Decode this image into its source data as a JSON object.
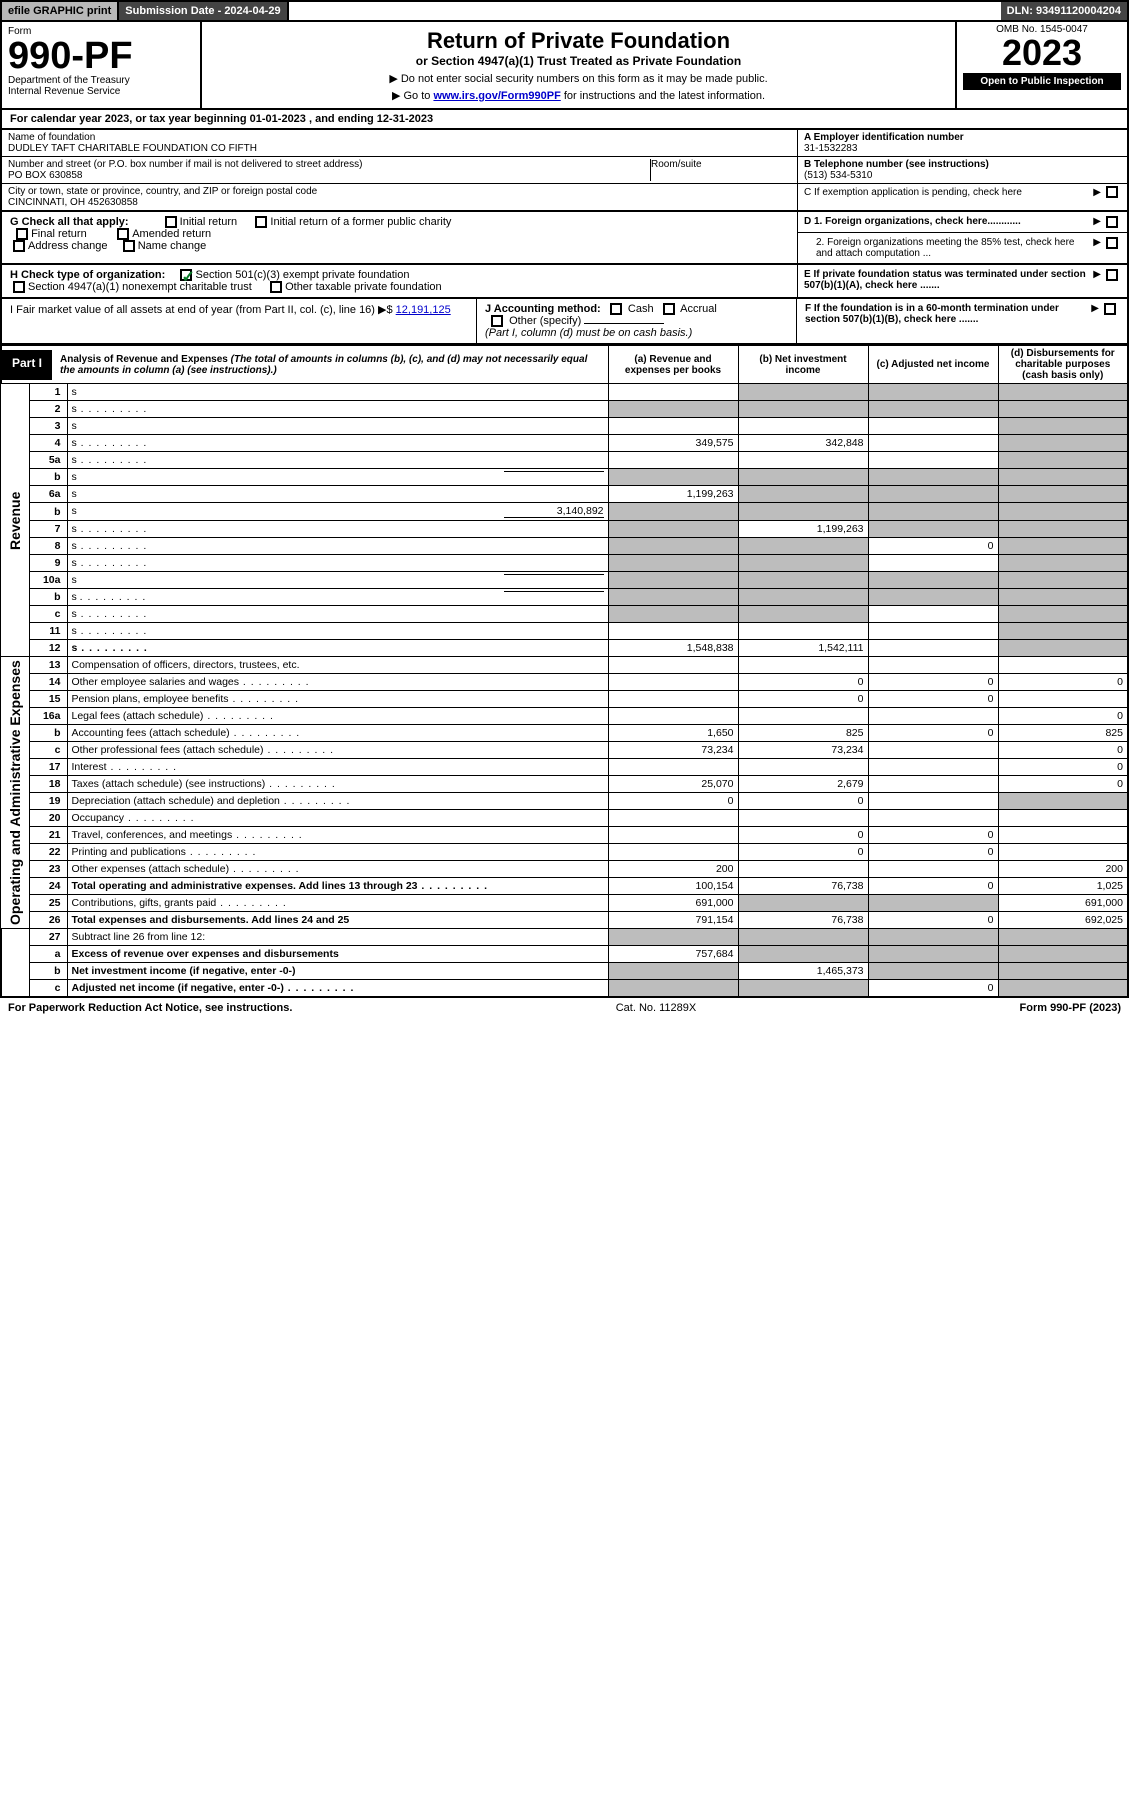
{
  "top_bar": {
    "efile": "efile GRAPHIC print",
    "sub_label": "Submission Date - 2024-04-29",
    "dln": "DLN: 93491120004204"
  },
  "header": {
    "form_word": "Form",
    "form_no": "990-PF",
    "dept": "Department of the Treasury",
    "irs": "Internal Revenue Service",
    "title": "Return of Private Foundation",
    "subtitle": "or Section 4947(a)(1) Trust Treated as Private Foundation",
    "note1": "▶ Do not enter social security numbers on this form as it may be made public.",
    "note2_pre": "▶ Go to ",
    "note2_link": "www.irs.gov/Form990PF",
    "note2_post": " for instructions and the latest information.",
    "omb": "OMB No. 1545-0047",
    "year": "2023",
    "open": "Open to Public Inspection"
  },
  "cal": "For calendar year 2023, or tax year beginning 01-01-2023                   , and ending 12-31-2023",
  "info": {
    "name_label": "Name of foundation",
    "name": "DUDLEY TAFT CHARITABLE FOUNDATION CO FIFTH",
    "addr_label": "Number and street (or P.O. box number if mail is not delivered to street address)",
    "addr": "PO BOX 630858",
    "room_label": "Room/suite",
    "city_label": "City or town, state or province, country, and ZIP or foreign postal code",
    "city": "CINCINNATI, OH  452630858",
    "a_label": "A Employer identification number",
    "a_val": "31-1532283",
    "b_label": "B Telephone number (see instructions)",
    "b_val": "(513) 534-5310",
    "c_label": "C If exemption application is pending, check here"
  },
  "g": {
    "label": "G Check all that apply:",
    "opts": [
      "Initial return",
      "Initial return of a former public charity",
      "Final return",
      "Amended return",
      "Address change",
      "Name change"
    ]
  },
  "h": {
    "label": "H Check type of organization:",
    "o1": "Section 501(c)(3) exempt private foundation",
    "o2": "Section 4947(a)(1) nonexempt charitable trust",
    "o3": "Other taxable private foundation"
  },
  "d": {
    "d1": "D 1. Foreign organizations, check here............",
    "d2": "2. Foreign organizations meeting the 85% test, check here and attach computation ..."
  },
  "e": "E  If private foundation status was terminated under section 507(b)(1)(A), check here .......",
  "i": {
    "label": "I Fair market value of all assets at end of year (from Part II, col. (c), line 16) ▶$ ",
    "val": "12,191,125"
  },
  "j": {
    "label": "J Accounting method:",
    "cash": "Cash",
    "accrual": "Accrual",
    "other": "Other (specify)",
    "note": "(Part I, column (d) must be on cash basis.)"
  },
  "f": "F  If the foundation is in a 60-month termination under section 507(b)(1)(B), check here .......",
  "part1": {
    "label": "Part I",
    "title": "Analysis of Revenue and Expenses",
    "title_note": " (The total of amounts in columns (b), (c), and (d) may not necessarily equal the amounts in column (a) (see instructions).)",
    "col_a": "(a)  Revenue and expenses per books",
    "col_b": "(b)  Net investment income",
    "col_c": "(c)  Adjusted net income",
    "col_d": "(d)  Disbursements for charitable purposes (cash basis only)"
  },
  "side_labels": {
    "rev": "Revenue",
    "exp": "Operating and Administrative Expenses"
  },
  "rows": [
    {
      "n": "1",
      "d": "s",
      "a": "",
      "b": "s",
      "c": "s"
    },
    {
      "n": "2",
      "d": "s",
      "a": "s",
      "b": "s",
      "c": "s",
      "dots": true
    },
    {
      "n": "3",
      "d": "s",
      "a": "",
      "b": "",
      "c": ""
    },
    {
      "n": "4",
      "d": "s",
      "a": "349,575",
      "b": "342,848",
      "c": "",
      "dots": true
    },
    {
      "n": "5a",
      "d": "s",
      "a": "",
      "b": "",
      "c": "",
      "dots": true
    },
    {
      "n": "b",
      "d": "s",
      "a": "s",
      "b": "s",
      "c": "s",
      "inline": ""
    },
    {
      "n": "6a",
      "d": "s",
      "a": "1,199,263",
      "b": "s",
      "c": "s"
    },
    {
      "n": "b",
      "d": "s",
      "a": "s",
      "b": "s",
      "c": "s",
      "inline": "3,140,892"
    },
    {
      "n": "7",
      "d": "s",
      "a": "s",
      "b": "1,199,263",
      "c": "s",
      "dots": true
    },
    {
      "n": "8",
      "d": "s",
      "a": "s",
      "b": "s",
      "c": "0",
      "dots": true
    },
    {
      "n": "9",
      "d": "s",
      "a": "s",
      "b": "s",
      "c": "",
      "dots": true
    },
    {
      "n": "10a",
      "d": "s",
      "a": "s",
      "b": "s",
      "c": "s",
      "inline": ""
    },
    {
      "n": "b",
      "d": "s",
      "a": "s",
      "b": "s",
      "c": "s",
      "inline": "",
      "dots": true
    },
    {
      "n": "c",
      "d": "s",
      "a": "s",
      "b": "s",
      "c": "",
      "dots": true
    },
    {
      "n": "11",
      "d": "s",
      "a": "",
      "b": "",
      "c": "",
      "dots": true
    },
    {
      "n": "12",
      "d": "s",
      "a": "1,548,838",
      "b": "1,542,111",
      "c": "",
      "bold": true,
      "dots": true
    }
  ],
  "exp_rows": [
    {
      "n": "13",
      "d": "Compensation of officers, directors, trustees, etc.",
      "a": "",
      "b": "",
      "c": "",
      "dd": ""
    },
    {
      "n": "14",
      "d": "Other employee salaries and wages",
      "a": "",
      "b": "0",
      "c": "0",
      "dd": "0",
      "dots": true
    },
    {
      "n": "15",
      "d": "Pension plans, employee benefits",
      "a": "",
      "b": "0",
      "c": "0",
      "dd": "",
      "dots": true
    },
    {
      "n": "16a",
      "d": "Legal fees (attach schedule)",
      "a": "",
      "b": "",
      "c": "",
      "dd": "0",
      "dots": true
    },
    {
      "n": "b",
      "d": "Accounting fees (attach schedule)",
      "a": "1,650",
      "b": "825",
      "c": "0",
      "dd": "825",
      "dots": true
    },
    {
      "n": "c",
      "d": "Other professional fees (attach schedule)",
      "a": "73,234",
      "b": "73,234",
      "c": "",
      "dd": "0",
      "dots": true
    },
    {
      "n": "17",
      "d": "Interest",
      "a": "",
      "b": "",
      "c": "",
      "dd": "0",
      "dots": true
    },
    {
      "n": "18",
      "d": "Taxes (attach schedule) (see instructions)",
      "a": "25,070",
      "b": "2,679",
      "c": "",
      "dd": "0",
      "dots": true
    },
    {
      "n": "19",
      "d": "Depreciation (attach schedule) and depletion",
      "a": "0",
      "b": "0",
      "c": "",
      "dd": "s",
      "dots": true
    },
    {
      "n": "20",
      "d": "Occupancy",
      "a": "",
      "b": "",
      "c": "",
      "dd": "",
      "dots": true
    },
    {
      "n": "21",
      "d": "Travel, conferences, and meetings",
      "a": "",
      "b": "0",
      "c": "0",
      "dd": "",
      "dots": true
    },
    {
      "n": "22",
      "d": "Printing and publications",
      "a": "",
      "b": "0",
      "c": "0",
      "dd": "",
      "dots": true
    },
    {
      "n": "23",
      "d": "Other expenses (attach schedule)",
      "a": "200",
      "b": "",
      "c": "",
      "dd": "200",
      "dots": true
    },
    {
      "n": "24",
      "d": "Total operating and administrative expenses. Add lines 13 through 23",
      "a": "100,154",
      "b": "76,738",
      "c": "0",
      "dd": "1,025",
      "bold": true,
      "dots": true
    },
    {
      "n": "25",
      "d": "Contributions, gifts, grants paid",
      "a": "691,000",
      "b": "s",
      "c": "s",
      "dd": "691,000",
      "dots": true
    },
    {
      "n": "26",
      "d": "Total expenses and disbursements. Add lines 24 and 25",
      "a": "791,154",
      "b": "76,738",
      "c": "0",
      "dd": "692,025",
      "bold": true
    }
  ],
  "bottom_rows": [
    {
      "n": "27",
      "d": "Subtract line 26 from line 12:",
      "a": "s",
      "b": "s",
      "c": "s",
      "dd": "s"
    },
    {
      "n": "a",
      "d": "Excess of revenue over expenses and disbursements",
      "a": "757,684",
      "b": "s",
      "c": "s",
      "dd": "s",
      "bold": true
    },
    {
      "n": "b",
      "d": "Net investment income (if negative, enter -0-)",
      "a": "s",
      "b": "1,465,373",
      "c": "s",
      "dd": "s",
      "bold": true
    },
    {
      "n": "c",
      "d": "Adjusted net income (if negative, enter -0-)",
      "a": "s",
      "b": "s",
      "c": "0",
      "dd": "s",
      "bold": true,
      "dots": true
    }
  ],
  "footer": {
    "left": "For Paperwork Reduction Act Notice, see instructions.",
    "center": "Cat. No. 11289X",
    "right": "Form 990-PF (2023)"
  },
  "colors": {
    "shade": "#bdbdbd",
    "link": "#0000cc",
    "check": "#0a7d2a"
  }
}
